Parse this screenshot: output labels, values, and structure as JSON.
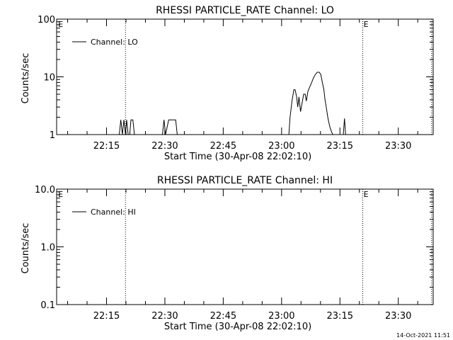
{
  "footer": {
    "timestamp": "14-Oct-2021 11:51"
  },
  "chart_data": [
    {
      "type": "line",
      "title": "RHESSI PARTICLE_RATE Channel: LO",
      "xlabel": "Start Time (30-Apr-08 22:02:10)",
      "ylabel": "Counts/sec",
      "x_unit": "minutes after 22:02:10",
      "xlim": [
        0,
        96.8
      ],
      "yscale": "log",
      "ylim": [
        1,
        100
      ],
      "yticks": [
        {
          "v": 1,
          "label": "1"
        },
        {
          "v": 10,
          "label": "10"
        },
        {
          "v": 100,
          "label": "100"
        }
      ],
      "xticks": [
        {
          "v": 12.83,
          "label": "22:15"
        },
        {
          "v": 27.83,
          "label": "22:30"
        },
        {
          "v": 42.83,
          "label": "22:45"
        },
        {
          "v": 57.83,
          "label": "23:00"
        },
        {
          "v": 72.83,
          "label": "23:15"
        },
        {
          "v": 87.83,
          "label": "23:30"
        }
      ],
      "vlines": [
        17.7,
        78.7,
        96.4
      ],
      "markers": [
        {
          "x": 0.4,
          "label": "E"
        },
        {
          "x": 78.9,
          "label": "E"
        }
      ],
      "legend": "top-left",
      "series": [
        {
          "name": "Channel: LO",
          "x": [
            16.1,
            16.5,
            16.9,
            17.3,
            17.7,
            18.0,
            18.4,
            18.8,
            19.1,
            19.6,
            20.0,
            27.2,
            27.6,
            28.0,
            28.8,
            29.2,
            29.8,
            30.6,
            31.0,
            59.7,
            60.0,
            60.5,
            61.0,
            61.3,
            61.7,
            62.0,
            62.3,
            62.7,
            63.0,
            63.5,
            63.9,
            64.2,
            64.6,
            65.0,
            65.5,
            66.0,
            66.5,
            67.0,
            67.5,
            67.9,
            68.3,
            68.7,
            69.0,
            69.3,
            69.7,
            70.0,
            70.3,
            70.7,
            71.0,
            73.7,
            74.0,
            74.3
          ],
          "y": [
            1,
            1.8,
            1,
            1.8,
            1,
            1.8,
            1,
            1,
            1.8,
            1.8,
            1,
            1,
            1.8,
            1,
            1.8,
            1.8,
            1.8,
            1.8,
            1,
            1,
            2,
            3.8,
            6.0,
            6.0,
            4.5,
            3.0,
            4.5,
            2.5,
            3.2,
            5.0,
            5.0,
            3.8,
            5.6,
            6.5,
            7.8,
            9.5,
            11.0,
            12.0,
            12.0,
            11.0,
            8.0,
            6.0,
            4.0,
            3.0,
            2.0,
            1.6,
            1.3,
            1.1,
            1,
            1,
            1.9,
            1
          ]
        }
      ]
    },
    {
      "type": "line",
      "title": "RHESSI PARTICLE_RATE Channel: HI",
      "xlabel": "Start Time (30-Apr-08 22:02:10)",
      "ylabel": "Counts/sec",
      "x_unit": "minutes after 22:02:10",
      "xlim": [
        0,
        96.8
      ],
      "yscale": "log",
      "ylim": [
        0.1,
        10
      ],
      "yticks": [
        {
          "v": 0.1,
          "label": "0.1"
        },
        {
          "v": 1,
          "label": "1.0"
        },
        {
          "v": 10,
          "label": "10.0"
        }
      ],
      "xticks": [
        {
          "v": 12.83,
          "label": "22:15"
        },
        {
          "v": 27.83,
          "label": "22:30"
        },
        {
          "v": 42.83,
          "label": "22:45"
        },
        {
          "v": 57.83,
          "label": "23:00"
        },
        {
          "v": 72.83,
          "label": "23:15"
        },
        {
          "v": 87.83,
          "label": "23:30"
        }
      ],
      "vlines": [
        17.7,
        78.7,
        96.4
      ],
      "markers": [
        {
          "x": 0.4,
          "label": "E"
        },
        {
          "x": 78.9,
          "label": "E"
        }
      ],
      "legend": "top-left",
      "series": [
        {
          "name": "Channel: HI",
          "x": [],
          "y": []
        }
      ]
    }
  ]
}
